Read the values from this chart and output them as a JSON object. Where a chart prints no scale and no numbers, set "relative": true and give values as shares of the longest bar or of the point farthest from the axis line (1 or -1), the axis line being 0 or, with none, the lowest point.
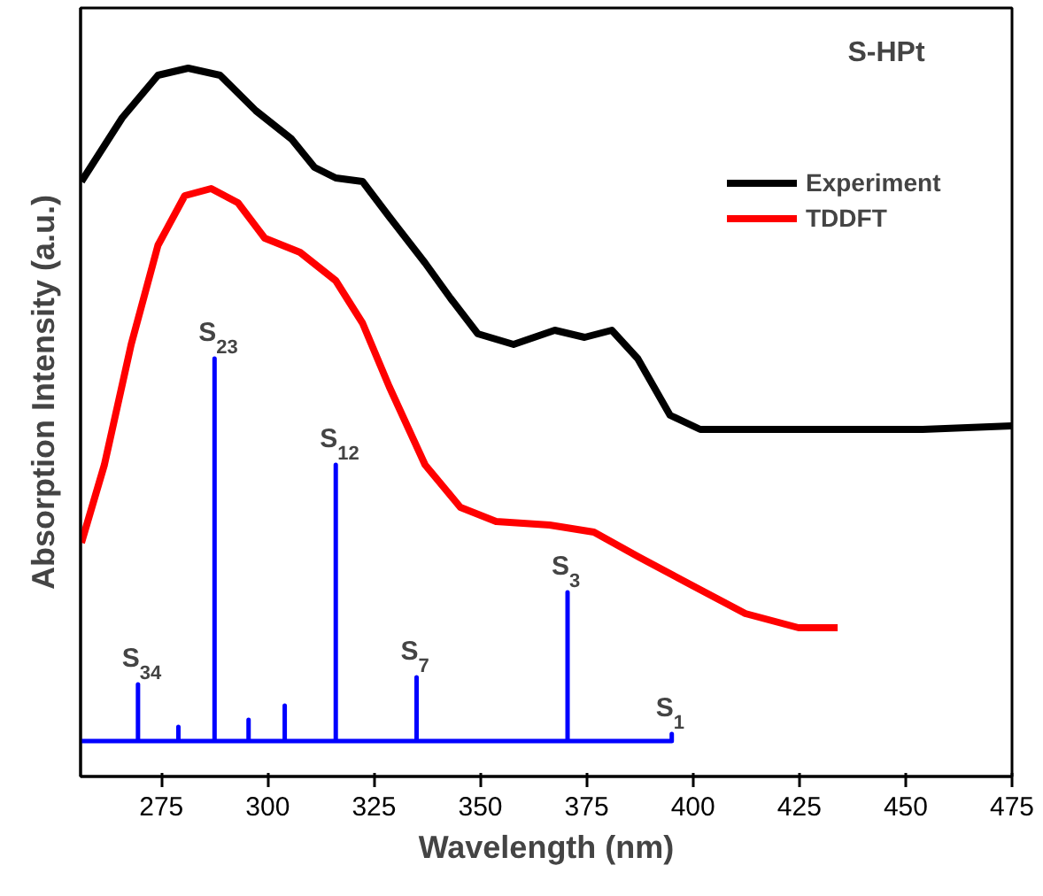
{
  "chart_data": {
    "type": "line",
    "relative": true,
    "xlabel": "Wavelength (nm)",
    "ylabel": "Absorption Intensity (a.u.)",
    "xlim": [
      256,
      475
    ],
    "xticks": [
      275,
      300,
      325,
      350,
      375,
      400,
      425,
      450,
      475
    ],
    "tick_labels": "x",
    "grid": false,
    "legend": "top right",
    "line_style": "solid",
    "marker": "none",
    "series": [
      {
        "name": "Experiment",
        "color": "#000000",
        "x": [
          256.2,
          265.8,
          274.2,
          281.3,
          288.8,
          297.2,
          305.6,
          311,
          316,
          322.3,
          328.6,
          337,
          343,
          349.4,
          357.8,
          367.5,
          374.5,
          380.9,
          387,
          394.6,
          401.7,
          412,
          433,
          454,
          475
        ],
        "values": [
          0.84,
          0.93,
          0.99,
          1.0,
          0.99,
          0.94,
          0.9,
          0.86,
          0.845,
          0.84,
          0.79,
          0.725,
          0.675,
          0.625,
          0.61,
          0.63,
          0.62,
          0.63,
          0.59,
          0.51,
          0.49,
          0.49,
          0.49,
          0.49,
          0.495
        ]
      },
      {
        "name": "TDDFT",
        "color": "#ff0000",
        "x": [
          256.2,
          261.6,
          267.9,
          274.2,
          280.5,
          286.7,
          293,
          299.3,
          307.6,
          316,
          322.3,
          328.6,
          337,
          345.3,
          353.7,
          366.3,
          376.7,
          387.2,
          399.7,
          412.3,
          424.8,
          434
        ],
        "values": [
          0.33,
          0.44,
          0.61,
          0.75,
          0.82,
          0.83,
          0.81,
          0.76,
          0.74,
          0.7,
          0.64,
          0.55,
          0.44,
          0.38,
          0.36,
          0.355,
          0.345,
          0.31,
          0.27,
          0.23,
          0.21,
          0.21
        ]
      },
      {
        "color": "#0000ff",
        "x": [
          256.2,
          269.5,
          269.5,
          269.5,
          279,
          279,
          279,
          287.5,
          287.5,
          287.5,
          295.5,
          295.5,
          295.5,
          304,
          304,
          304,
          316,
          316,
          316,
          335,
          335,
          335,
          370.5,
          370.5,
          370.5,
          395,
          395,
          395
        ],
        "values": [
          0.05,
          0.05,
          0.13,
          0.05,
          0.05,
          0.07,
          0.05,
          0.05,
          0.59,
          0.05,
          0.05,
          0.08,
          0.05,
          0.05,
          0.1,
          0.05,
          0.05,
          0.44,
          0.05,
          0.05,
          0.14,
          0.05,
          0.05,
          0.26,
          0.05,
          0.05,
          0.06,
          0.05
        ]
      }
    ],
    "annotations": [
      "S-HPt",
      {
        "text": "S$_{34}$",
        "x": 269.5,
        "y": 0.13
      },
      {
        "text": "S$_{23}$",
        "x": 287.5,
        "y": 0.59
      },
      {
        "text": "S$_{12}$",
        "x": 316,
        "y": 0.44
      },
      {
        "text": "S$_{7}$",
        "x": 335,
        "y": 0.14
      },
      {
        "text": "S$_{3}$",
        "x": 370.5,
        "y": 0.26
      },
      {
        "text": "S$_{1}$",
        "x": 395,
        "y": 0.06
      }
    ]
  }
}
